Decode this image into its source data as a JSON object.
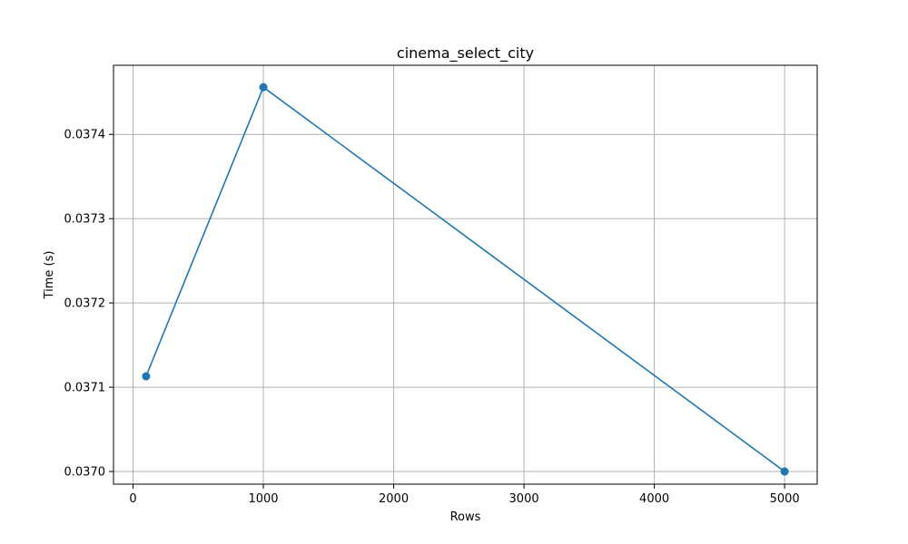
{
  "chart_data": {
    "type": "line",
    "title": "cinema_select_city",
    "xlabel": "Rows",
    "ylabel": "Time (s)",
    "xlim": [
      -150,
      5250
    ],
    "ylim": [
      0.036985,
      0.037482
    ],
    "x_ticks": [
      0,
      1000,
      2000,
      3000,
      4000,
      5000
    ],
    "x_tick_labels": [
      "0",
      "1000",
      "2000",
      "3000",
      "4000",
      "5000"
    ],
    "y_ticks": [
      0.037,
      0.0371,
      0.0372,
      0.0373,
      0.0374
    ],
    "y_tick_labels": [
      "0.0370",
      "0.0371",
      "0.0372",
      "0.0373",
      "0.0374"
    ],
    "grid": true,
    "series": [
      {
        "x": [
          100,
          1000,
          5000
        ],
        "values": [
          0.037113,
          0.037456,
          0.037
        ],
        "color": "#1f77b4",
        "marker": "circle"
      }
    ]
  }
}
